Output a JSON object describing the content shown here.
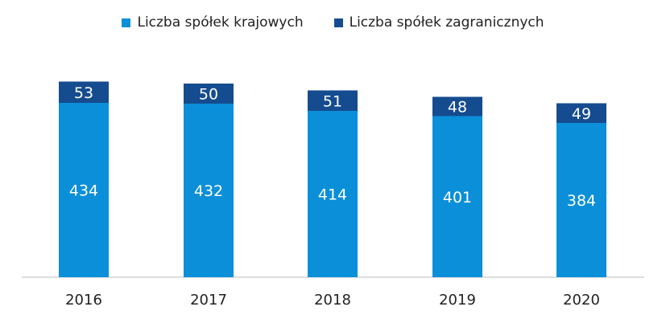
{
  "chart_data": {
    "type": "bar",
    "stacked": true,
    "categories": [
      "2016",
      "2017",
      "2018",
      "2019",
      "2020"
    ],
    "series": [
      {
        "name": "Liczba spółek krajowych",
        "values": [
          434,
          432,
          414,
          401,
          384
        ],
        "color": "#0b8fd8"
      },
      {
        "name": "Liczba spółek zagranicznych",
        "values": [
          53,
          50,
          51,
          48,
          49
        ],
        "color": "#154c8f"
      }
    ],
    "title": "",
    "xlabel": "",
    "ylabel": "",
    "ylim": [
      0,
      520
    ],
    "grid": false,
    "legend": "top-center"
  }
}
